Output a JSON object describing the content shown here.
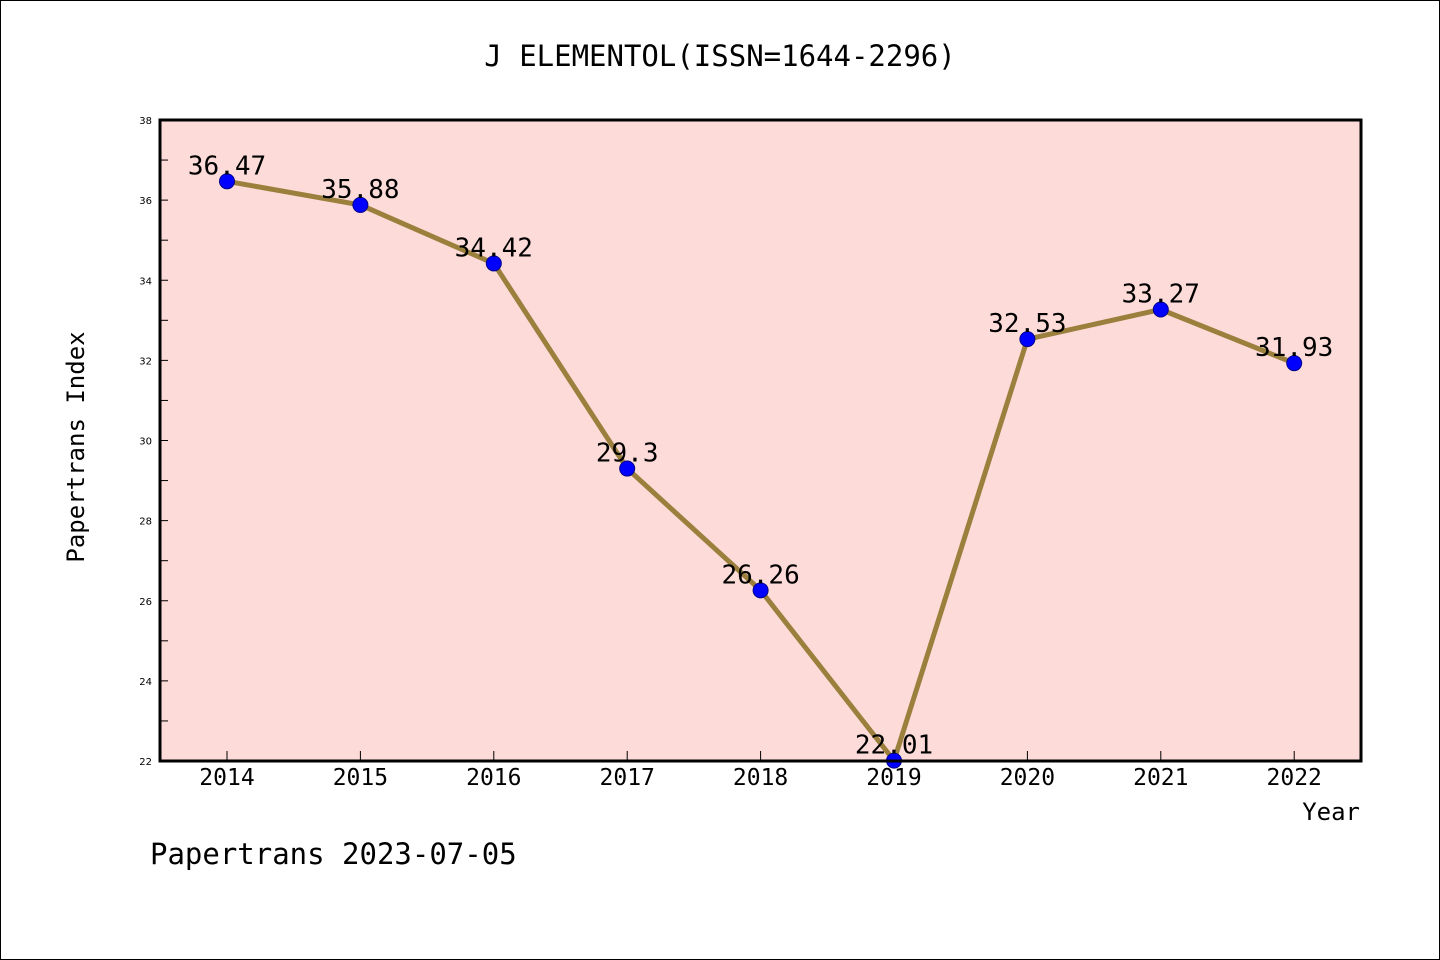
{
  "footer": {
    "watermark": "Papertrans 2023-07-05"
  },
  "colors": {
    "plot_background": "#fddbd8",
    "line": "#9b7f3c",
    "marker": "#0000ff",
    "marker_edge": "#00008b",
    "frame": "#000000"
  },
  "chart_data": {
    "type": "line",
    "title": "J ELEMENTOL(ISSN=1644-2296)",
    "xlabel": "Year",
    "ylabel": "Papertrans Index",
    "categories": [
      "2014",
      "2015",
      "2016",
      "2017",
      "2018",
      "2019",
      "2020",
      "2021",
      "2022"
    ],
    "series": [
      {
        "values": [
          36.47,
          35.88,
          34.42,
          29.3,
          26.26,
          22.01,
          32.53,
          33.27,
          31.93
        ],
        "labels": [
          "36.47",
          "35.88",
          "34.42",
          "29.3",
          "26.26",
          "22.01",
          "32.53",
          "33.27",
          "31.93"
        ]
      }
    ],
    "ylim": [
      22,
      38
    ],
    "yticks": [
      22,
      24,
      26,
      28,
      30,
      32,
      34,
      36,
      38
    ],
    "grid": false,
    "legend": "none"
  }
}
